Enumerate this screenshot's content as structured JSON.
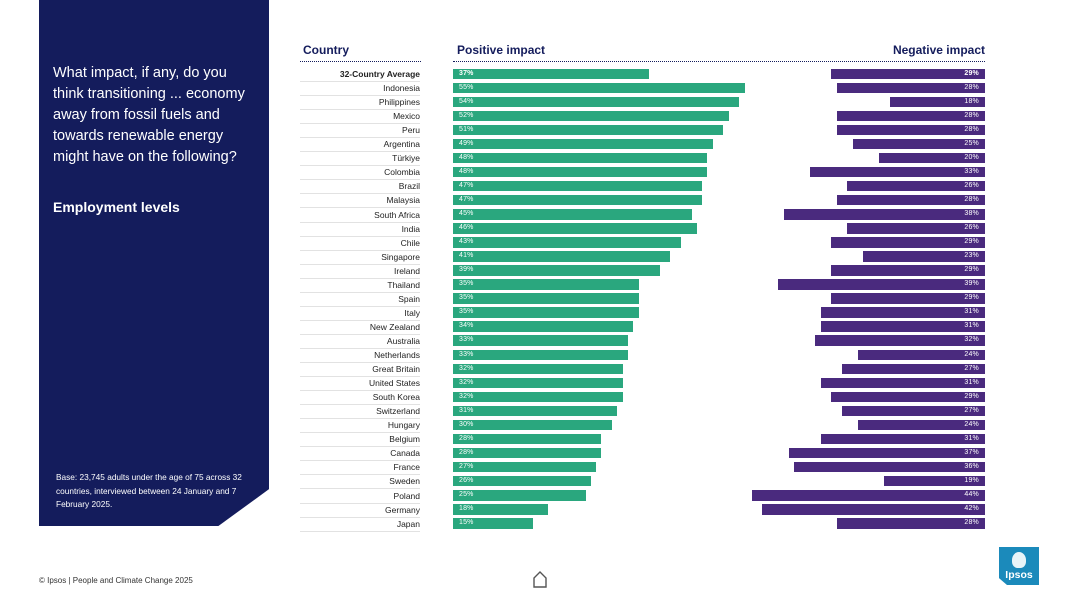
{
  "panel": {
    "question": "What impact, if any, do you think transitioning ... economy away from fossil fuels and towards renewable energy might have on the following?",
    "subject": "Employment levels",
    "base": "Base: 23,745 adults under the age of 75 across 32 countries, interviewed between 24 January and 7 February 2025."
  },
  "footer": {
    "source": "© Ipsos | People and Climate Change 2025",
    "logo_text": "Ipsos"
  },
  "colors": {
    "positive": "#2aa77e",
    "negative": "#4a2a7e",
    "panel": "#141c5c"
  },
  "chart_data": {
    "type": "bar",
    "orientation": "horizontal",
    "header": {
      "country": "Country",
      "positive": "Positive impact",
      "negative": "Negative impact"
    },
    "categories": [
      "32-Country Average",
      "Indonesia",
      "Philippines",
      "Mexico",
      "Peru",
      "Argentina",
      "Türkiye",
      "Colombia",
      "Brazil",
      "Malaysia",
      "South Africa",
      "India",
      "Chile",
      "Singapore",
      "Ireland",
      "Thailand",
      "Spain",
      "Italy",
      "New Zealand",
      "Australia",
      "Netherlands",
      "Great Britain",
      "United States",
      "South Korea",
      "Switzerland",
      "Hungary",
      "Belgium",
      "Canada",
      "France",
      "Sweden",
      "Poland",
      "Germany",
      "Japan"
    ],
    "series": [
      {
        "name": "Positive impact",
        "values": [
          37,
          55,
          54,
          52,
          51,
          49,
          48,
          48,
          47,
          47,
          45,
          46,
          43,
          41,
          39,
          35,
          35,
          35,
          34,
          33,
          33,
          32,
          32,
          32,
          31,
          30,
          28,
          28,
          27,
          26,
          25,
          18,
          15
        ]
      },
      {
        "name": "Negative impact",
        "values": [
          29,
          28,
          18,
          28,
          28,
          25,
          20,
          33,
          26,
          28,
          38,
          26,
          29,
          23,
          29,
          39,
          29,
          31,
          31,
          32,
          24,
          27,
          31,
          29,
          27,
          24,
          31,
          37,
          36,
          19,
          44,
          42,
          28
        ]
      }
    ],
    "unit": "%",
    "xlim": [
      0,
      100
    ]
  }
}
